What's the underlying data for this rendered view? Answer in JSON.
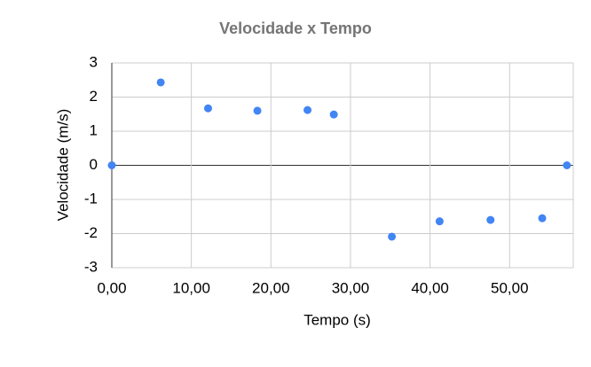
{
  "chart_data": {
    "type": "scatter",
    "title": "Velocidade x Tempo",
    "x_label": "Tempo (s)",
    "y_label": "Velocidade (m/s)",
    "x": [
      0,
      6.15,
      12.1,
      18.3,
      24.6,
      27.9,
      35.2,
      41.2,
      47.6,
      54.1,
      57.2
    ],
    "values": [
      0,
      2.43,
      1.67,
      1.6,
      1.62,
      1.49,
      -2.09,
      -1.64,
      -1.6,
      -1.55,
      0
    ],
    "color": "#4285f4",
    "xlim": [
      0,
      58
    ],
    "ylim": [
      -3,
      3
    ],
    "xticks": [
      {
        "value": 0,
        "label": "0,00"
      },
      {
        "value": 10,
        "label": "10,00"
      },
      {
        "value": 20,
        "label": "20,00"
      },
      {
        "value": 30,
        "label": "30,00"
      },
      {
        "value": 40,
        "label": "40,00"
      },
      {
        "value": 50,
        "label": "50,00"
      }
    ],
    "yticks": [
      -3,
      -2,
      -1,
      0,
      1,
      2,
      3
    ],
    "grid": true
  }
}
